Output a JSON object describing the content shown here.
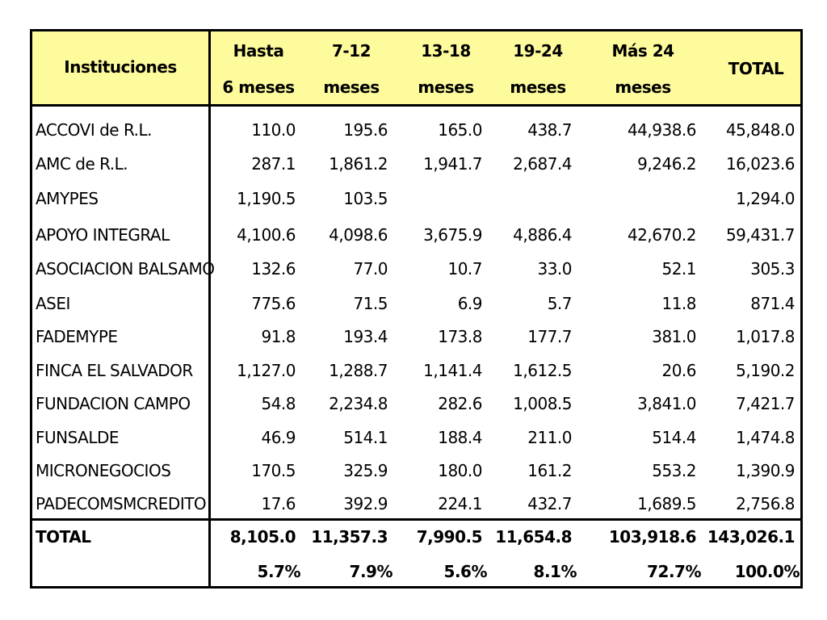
{
  "header": {
    "institutions": "Instituciones",
    "columns": [
      {
        "line1": "Hasta",
        "line2": "6 meses"
      },
      {
        "line1": "7-12",
        "line2": "meses"
      },
      {
        "line1": "13-18",
        "line2": "meses"
      },
      {
        "line1": "19-24",
        "line2": "meses"
      },
      {
        "line1": "Más 24",
        "line2": "meses"
      }
    ],
    "total": "TOTAL"
  },
  "rows": [
    {
      "name": "ACCOVI de R.L.",
      "values": [
        "110.0",
        "195.6",
        "165.0",
        "438.7",
        "44,938.6",
        "45,848.0"
      ]
    },
    {
      "name": "AMC de R.L.",
      "values": [
        "287.1",
        "1,861.2",
        "1,941.7",
        "2,687.4",
        "9,246.2",
        "16,023.6"
      ]
    },
    {
      "name": "AMYPES",
      "values": [
        "1,190.5",
        "103.5",
        "",
        "",
        "",
        "1,294.0"
      ]
    },
    {
      "name": "APOYO INTEGRAL",
      "values": [
        "4,100.6",
        "4,098.6",
        "3,675.9",
        "4,886.4",
        "42,670.2",
        "59,431.7"
      ]
    },
    {
      "name": "ASOCIACION BALSAMO",
      "values": [
        "132.6",
        "77.0",
        "10.7",
        "33.0",
        "52.1",
        "305.3"
      ]
    },
    {
      "name": "ASEI",
      "values": [
        "775.6",
        "71.5",
        "6.9",
        "5.7",
        "11.8",
        "871.4"
      ]
    },
    {
      "name": "FADEMYPE",
      "values": [
        "91.8",
        "193.4",
        "173.8",
        "177.7",
        "381.0",
        "1,017.8"
      ]
    },
    {
      "name": "FINCA EL SALVADOR",
      "values": [
        "1,127.0",
        "1,288.7",
        "1,141.4",
        "1,612.5",
        "20.6",
        "5,190.2"
      ]
    },
    {
      "name": "FUNDACION CAMPO",
      "values": [
        "54.8",
        "2,234.8",
        "282.6",
        "1,008.5",
        "3,841.0",
        "7,421.7"
      ]
    },
    {
      "name": "FUNSALDE",
      "values": [
        "46.9",
        "514.1",
        "188.4",
        "211.0",
        "514.4",
        "1,474.8"
      ]
    },
    {
      "name": "MICRONEGOCIOS",
      "values": [
        "170.5",
        "325.9",
        "180.0",
        "161.2",
        "553.2",
        "1,390.9"
      ]
    },
    {
      "name": "PADECOMSMCREDITO",
      "values": [
        "17.6",
        "392.9",
        "224.1",
        "432.7",
        "1,689.5",
        "2,756.8"
      ]
    }
  ],
  "total_row": {
    "name": "TOTAL",
    "values": [
      "8,105.0",
      "11,357.3",
      "7,990.5",
      "11,654.8",
      "103,918.6",
      "143,026.1"
    ],
    "percents": [
      "5.7%",
      "7.9%",
      "5.6%",
      "8.1%",
      "72.7%",
      "100.0%"
    ]
  },
  "colors": {
    "header_bg": "#fefb9c",
    "border": "#000000"
  }
}
